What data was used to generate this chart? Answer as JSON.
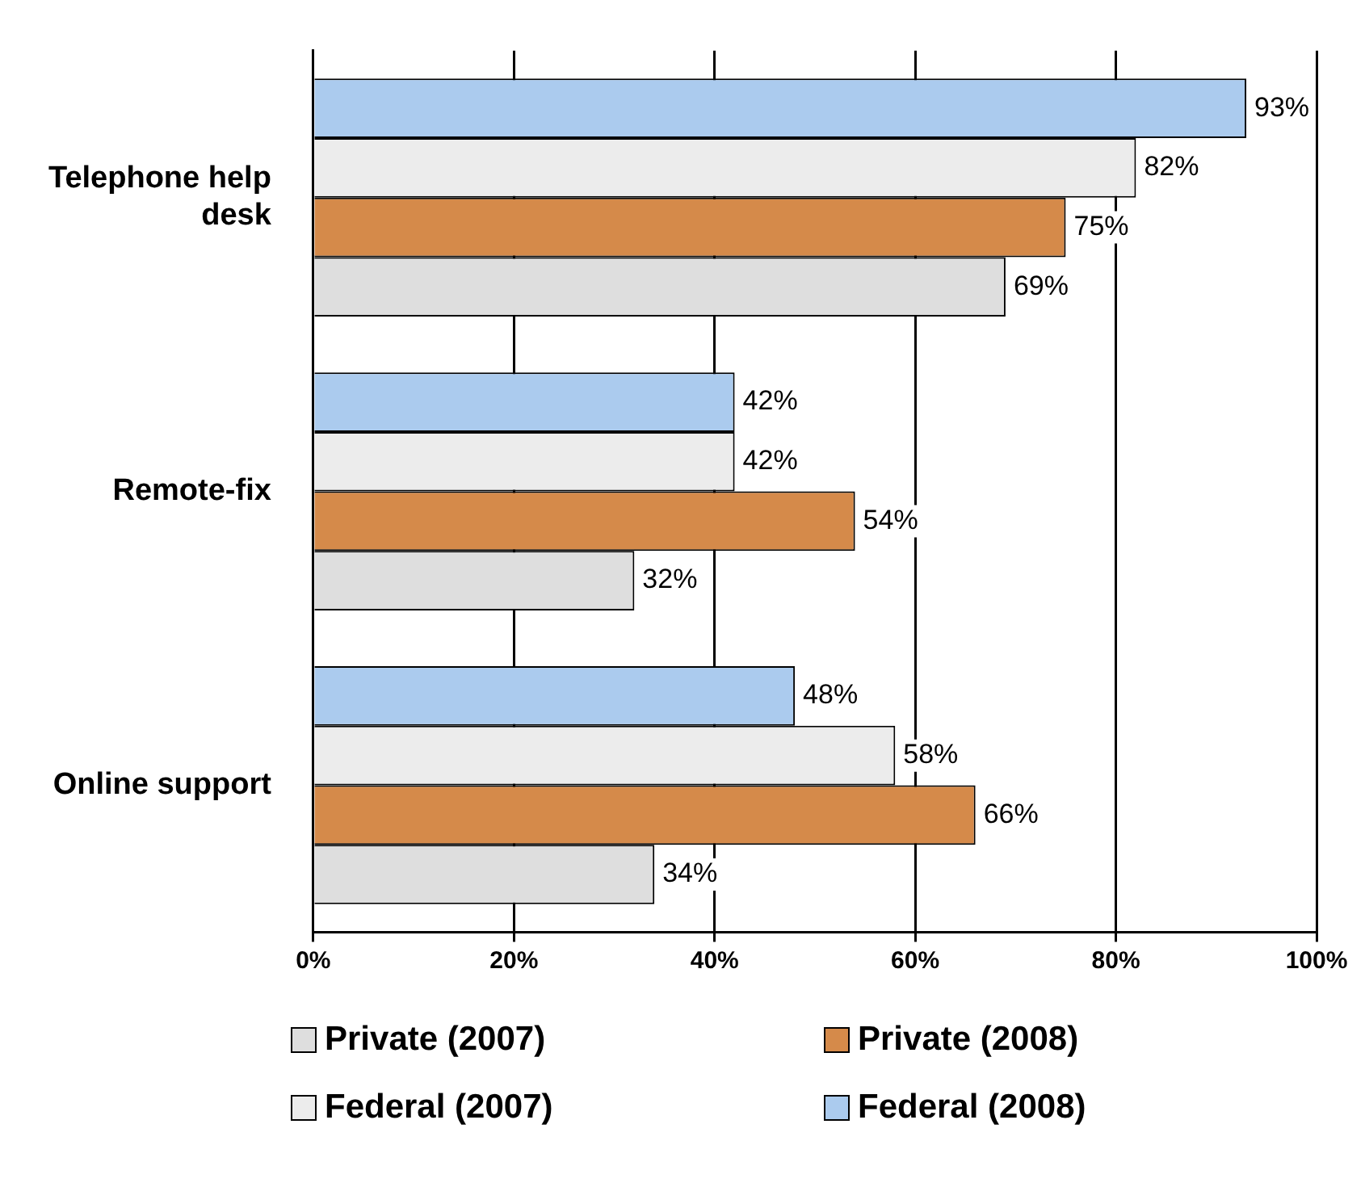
{
  "chart_data": {
    "type": "bar",
    "orientation": "horizontal",
    "categories": [
      "Telephone help desk",
      "Remote-fix",
      "Online support"
    ],
    "series": [
      {
        "name": "Private (2007)",
        "color": "#dedede",
        "values": [
          69,
          32,
          34
        ]
      },
      {
        "name": "Private (2008)",
        "color": "#d58a4a",
        "values": [
          75,
          54,
          66
        ]
      },
      {
        "name": "Federal (2007)",
        "color": "#ececec",
        "values": [
          82,
          42,
          58
        ]
      },
      {
        "name": "Federal (2008)",
        "color": "#abcbee",
        "values": [
          93,
          42,
          48
        ]
      }
    ],
    "xlim": [
      0,
      100
    ],
    "xticks": [
      {
        "value": 0,
        "label": "0%"
      },
      {
        "value": 20,
        "label": "20%"
      },
      {
        "value": 40,
        "label": "40%"
      },
      {
        "value": 60,
        "label": "60%"
      },
      {
        "value": 80,
        "label": "80%"
      },
      {
        "value": 100,
        "label": "100%"
      }
    ],
    "value_labels": [
      [
        "69%",
        "32%",
        "34%"
      ],
      [
        "75%",
        "54%",
        "66%"
      ],
      [
        "82%",
        "42%",
        "58%"
      ],
      [
        "93%",
        "42%",
        "48%"
      ]
    ],
    "grid": "x",
    "legend": "bottom"
  }
}
